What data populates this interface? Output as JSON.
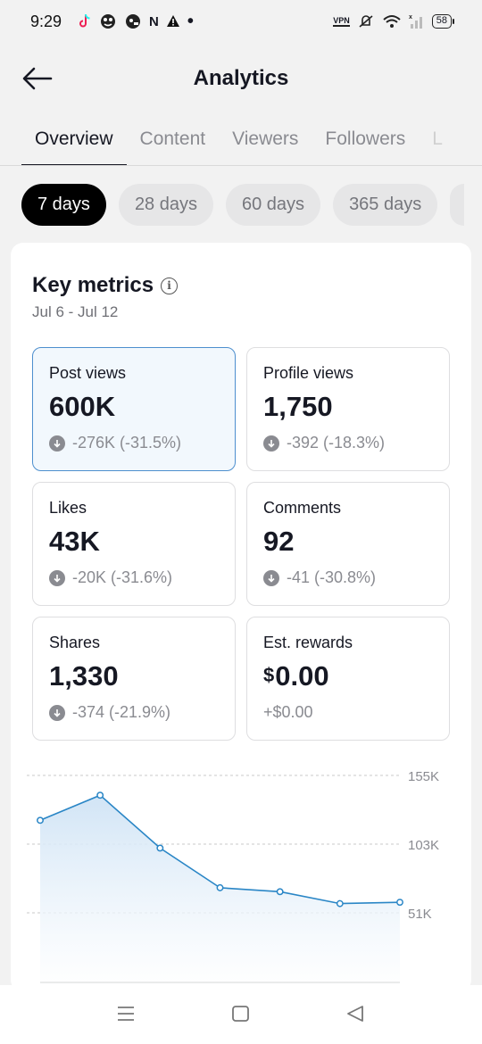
{
  "status_bar": {
    "time": "9:29",
    "left_icons": [
      "tiktok-icon",
      "app-icon",
      "app-icon",
      "N",
      "warning-icon",
      "dot"
    ],
    "vpn_label": "VPN",
    "battery": "58"
  },
  "header": {
    "title": "Analytics"
  },
  "tabs": [
    {
      "label": "Overview",
      "active": true
    },
    {
      "label": "Content",
      "active": false
    },
    {
      "label": "Viewers",
      "active": false
    },
    {
      "label": "Followers",
      "active": false
    },
    {
      "label": "L",
      "active": false
    }
  ],
  "ranges": [
    {
      "label": "7 days",
      "active": true
    },
    {
      "label": "28 days",
      "active": false
    },
    {
      "label": "60 days",
      "active": false
    },
    {
      "label": "365 days",
      "active": false
    }
  ],
  "key_metrics": {
    "title": "Key metrics",
    "date_range": "Jul 6 - Jul 12",
    "metrics": [
      {
        "label": "Post views",
        "value": "600K",
        "change": "-276K (-31.5%)",
        "down": true,
        "selected": true
      },
      {
        "label": "Profile views",
        "value": "1,750",
        "change": "-392 (-18.3%)",
        "down": true,
        "selected": false
      },
      {
        "label": "Likes",
        "value": "43K",
        "change": "-20K (-31.6%)",
        "down": true,
        "selected": false
      },
      {
        "label": "Comments",
        "value": "92",
        "change": "-41 (-30.8%)",
        "down": true,
        "selected": false
      },
      {
        "label": "Shares",
        "value": "1,330",
        "change": "-374 (-21.9%)",
        "down": true,
        "selected": false
      },
      {
        "label": "Est. rewards",
        "currency": "$",
        "value": "0.00",
        "change": "+$0.00",
        "down": false,
        "selected": false
      }
    ]
  },
  "chart_data": {
    "type": "area",
    "y_ticks": [
      "155K",
      "103K",
      "51K"
    ],
    "y_tick_values": [
      155000,
      103000,
      51000
    ],
    "ylim": [
      0,
      155000
    ],
    "values": [
      121000,
      140000,
      100000,
      70000,
      67000,
      58000,
      59000
    ],
    "line_color": "#2a86c6",
    "fill_color": "#cfe3f5",
    "grid": true
  },
  "nav_bar": {
    "buttons": [
      "recents",
      "home",
      "back"
    ]
  }
}
